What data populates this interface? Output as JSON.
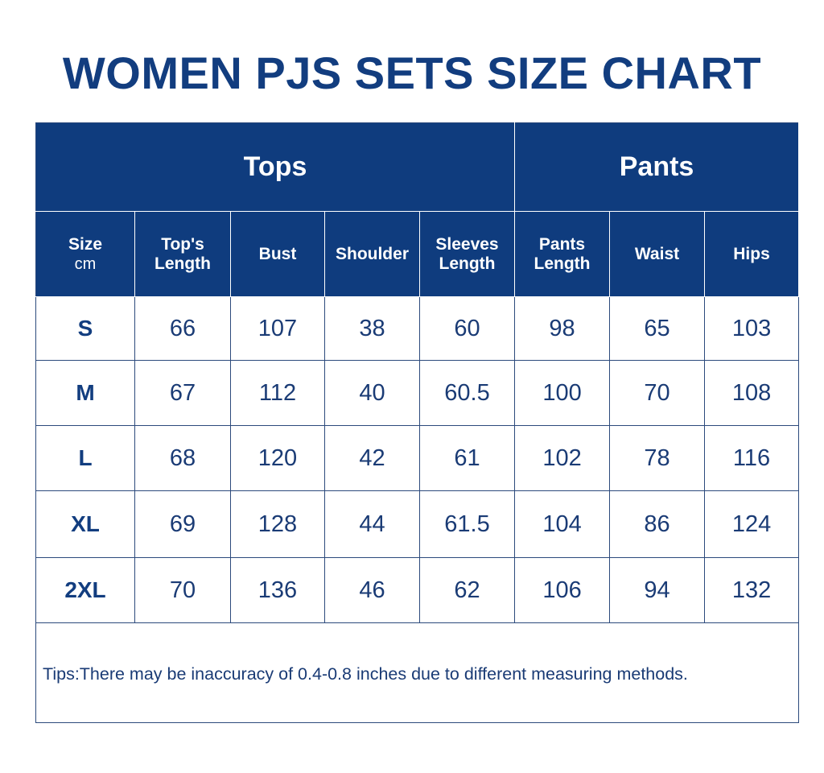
{
  "title": "WOMEN PJS SETS SIZE CHART",
  "colors": {
    "header_bg": "#0f3c7e",
    "text": "#123d7f",
    "border": "#2c4a7c"
  },
  "groups": {
    "tops": "Tops",
    "pants": "Pants"
  },
  "columns": [
    {
      "line1": "Size",
      "line2": "cm"
    },
    {
      "line1": "Top's",
      "line2": "Length"
    },
    {
      "line1": "Bust",
      "line2": ""
    },
    {
      "line1": "Shoulder",
      "line2": ""
    },
    {
      "line1": "Sleeves",
      "line2": "Length"
    },
    {
      "line1": "Pants",
      "line2": "Length"
    },
    {
      "line1": "Waist",
      "line2": ""
    },
    {
      "line1": "Hips",
      "line2": ""
    }
  ],
  "rows": [
    [
      "S",
      "66",
      "107",
      "38",
      "60",
      "98",
      "65",
      "103"
    ],
    [
      "M",
      "67",
      "112",
      "40",
      "60.5",
      "100",
      "70",
      "108"
    ],
    [
      "L",
      "68",
      "120",
      "42",
      "61",
      "102",
      "78",
      "116"
    ],
    [
      "XL",
      "69",
      "128",
      "44",
      "61.5",
      "104",
      "86",
      "124"
    ],
    [
      "2XL",
      "70",
      "136",
      "46",
      "62",
      "106",
      "94",
      "132"
    ]
  ],
  "tips": "Tips:There may be inaccuracy of 0.4-0.8 inches due to different measuring methods."
}
